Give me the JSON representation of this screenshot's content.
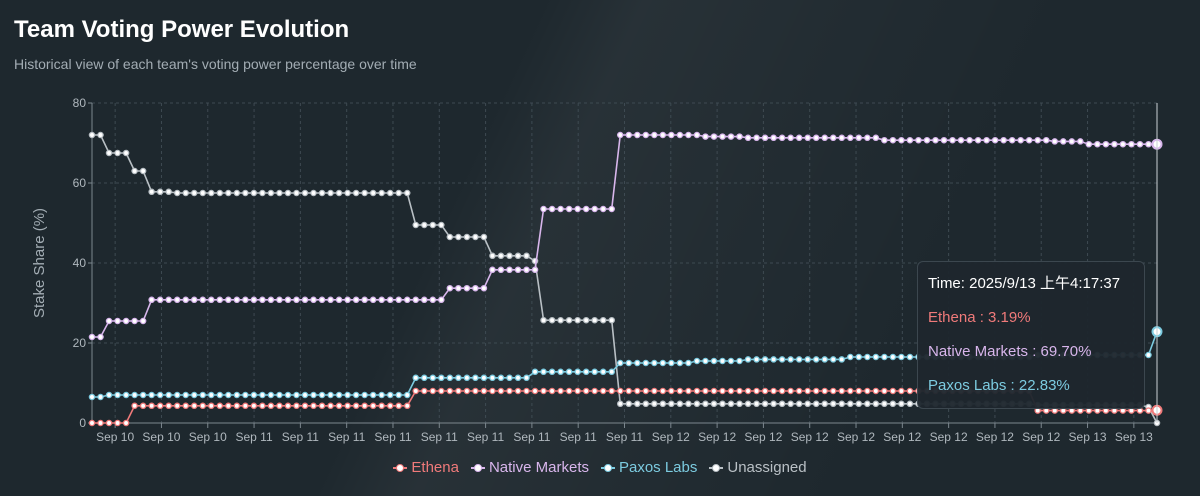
{
  "header": {
    "title": "Team Voting Power Evolution",
    "subtitle": "Historical view of each team's voting power percentage over time"
  },
  "tooltip": {
    "time": "Time: 2025/9/13 上午4:17:37",
    "rows": [
      {
        "text": "Ethena : 3.19%",
        "color": "#f07a7a"
      },
      {
        "text": "Native Markets : 69.70%",
        "color": "#d8b6ec"
      },
      {
        "text": "Paxos Labs : 22.83%",
        "color": "#7ccbe0"
      }
    ]
  },
  "legend": [
    {
      "label": "Ethena",
      "color": "#f07a7a"
    },
    {
      "label": "Native Markets",
      "color": "#d8b6ec"
    },
    {
      "label": "Paxos Labs",
      "color": "#7ccbe0"
    },
    {
      "label": "Unassigned",
      "color": "#b9c0c5"
    }
  ],
  "chart_data": {
    "type": "line",
    "title": "Team Voting Power Evolution",
    "subtitle": "Historical view of each team's voting power percentage over time",
    "xlabel": "",
    "ylabel": "Stake Share (%)",
    "ylim": [
      0,
      80
    ],
    "yticks": [
      0,
      20,
      40,
      60,
      80
    ],
    "xtick_labels": [
      "Sep 10",
      "Sep 10",
      "Sep 10",
      "Sep 11",
      "Sep 11",
      "Sep 11",
      "Sep 11",
      "Sep 11",
      "Sep 11",
      "Sep 11",
      "Sep 11",
      "Sep 11",
      "Sep 12",
      "Sep 12",
      "Sep 12",
      "Sep 12",
      "Sep 12",
      "Sep 12",
      "Sep 12",
      "Sep 12",
      "Sep 12",
      "Sep 13",
      "Sep 13"
    ],
    "grid": true,
    "legend_position": "bottom",
    "points_per_series": 126,
    "series": [
      {
        "name": "Ethena",
        "color": "#f07a7a",
        "steps": [
          [
            0,
            0
          ],
          [
            5,
            4.3
          ],
          [
            38,
            8.0
          ],
          [
            111,
            3.1
          ],
          [
            125,
            3.19
          ]
        ]
      },
      {
        "name": "Native Markets",
        "color": "#d8b6ec",
        "steps": [
          [
            0,
            21.5
          ],
          [
            2,
            25.5
          ],
          [
            7,
            30.8
          ],
          [
            42,
            33.7
          ],
          [
            47,
            38.3
          ],
          [
            53,
            53.5
          ],
          [
            62,
            72.0
          ],
          [
            72,
            71.6
          ],
          [
            77,
            71.3
          ],
          [
            93,
            70.7
          ],
          [
            113,
            70.4
          ],
          [
            117,
            69.7
          ]
        ]
      },
      {
        "name": "Paxos Labs",
        "color": "#7ccbe0",
        "steps": [
          [
            0,
            6.5
          ],
          [
            2,
            7.0
          ],
          [
            38,
            11.3
          ],
          [
            52,
            12.8
          ],
          [
            62,
            15.0
          ],
          [
            71,
            15.5
          ],
          [
            77,
            15.9
          ],
          [
            89,
            16.5
          ],
          [
            111,
            17.0
          ],
          [
            125,
            22.83
          ]
        ]
      },
      {
        "name": "Unassigned",
        "color": "#b9c0c5",
        "steps": [
          [
            0,
            72.0
          ],
          [
            2,
            67.5
          ],
          [
            5,
            63.0
          ],
          [
            7,
            57.8
          ],
          [
            10,
            57.5
          ],
          [
            38,
            49.5
          ],
          [
            42,
            46.5
          ],
          [
            47,
            41.8
          ],
          [
            52,
            40.5
          ],
          [
            53,
            25.7
          ],
          [
            62,
            4.8
          ],
          [
            111,
            4.5
          ],
          [
            124,
            4.0
          ],
          [
            125,
            0
          ]
        ]
      }
    ],
    "highlight": {
      "index": 125,
      "values": {
        "Ethena": 3.19,
        "Native Markets": 69.7,
        "Paxos Labs": 22.83
      }
    }
  }
}
